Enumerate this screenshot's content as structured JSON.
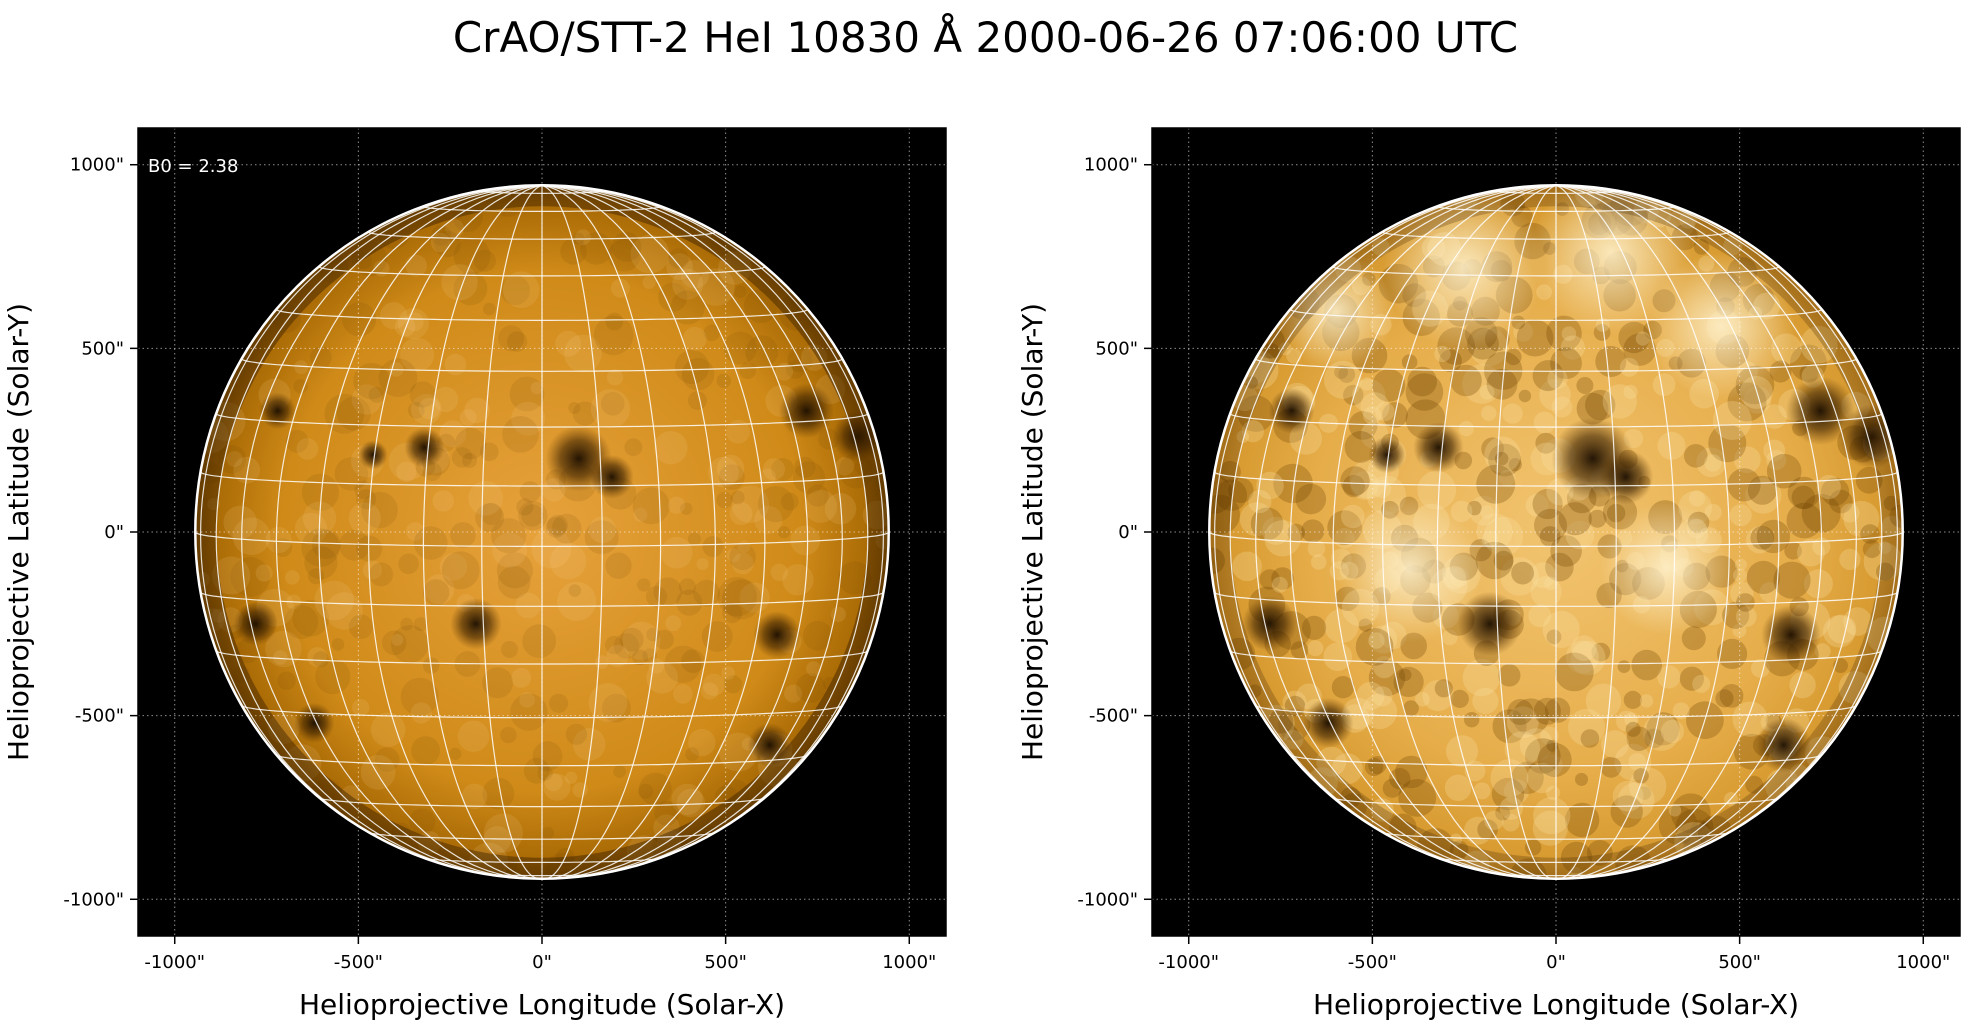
{
  "title": "CrAO/STT-2 HeI 10830 Å 2000-06-26 07:06:00 UTC",
  "colors": {
    "background": "#000000",
    "disk_dark": "#7a4a00",
    "disk_mid": "#c8860a",
    "disk_bright": "#f5c46a",
    "grid": "#ffffff",
    "limb": "#ffffff"
  },
  "panels": [
    {
      "id": "left",
      "annotation": "B0 = 2.38",
      "xlabel": "Helioprojective Longitude (Solar-X)",
      "ylabel": "Helioprojective Latitude (Solar-Y)",
      "x_ticks": [
        "-1000\"",
        "-500\"",
        "0\"",
        "500\"",
        "1000\""
      ],
      "y_ticks": [
        "1000\"",
        "500\"",
        "0\"",
        "-500\"",
        "-1000\""
      ],
      "contrast": "normal"
    },
    {
      "id": "right",
      "annotation": "",
      "xlabel": "Helioprojective Longitude (Solar-X)",
      "ylabel": "Helioprojective Latitude (Solar-Y)",
      "x_ticks": [
        "-1000\"",
        "-500\"",
        "0\"",
        "500\"",
        "1000\""
      ],
      "y_ticks": [
        "1000\"",
        "500\"",
        "0\"",
        "-500\"",
        "-1000\""
      ],
      "contrast": "enhanced"
    }
  ],
  "axis_range_arcsec": [
    -1100,
    1100
  ],
  "solar_radius_arcsec": 944,
  "b0_deg": 2.38,
  "grid": "on",
  "features": [
    {
      "x": -460,
      "y": 210,
      "r": 40
    },
    {
      "x": -320,
      "y": 230,
      "r": 55
    },
    {
      "x": 100,
      "y": 200,
      "r": 90
    },
    {
      "x": 190,
      "y": 150,
      "r": 60
    },
    {
      "x": -180,
      "y": -250,
      "r": 70
    },
    {
      "x": 640,
      "y": -280,
      "r": 65
    },
    {
      "x": -620,
      "y": -520,
      "r": 55
    },
    {
      "x": 620,
      "y": -580,
      "r": 60
    },
    {
      "x": 720,
      "y": 330,
      "r": 75
    },
    {
      "x": 860,
      "y": 260,
      "r": 70
    },
    {
      "x": -780,
      "y": -250,
      "r": 60
    },
    {
      "x": -720,
      "y": 330,
      "r": 50
    }
  ]
}
